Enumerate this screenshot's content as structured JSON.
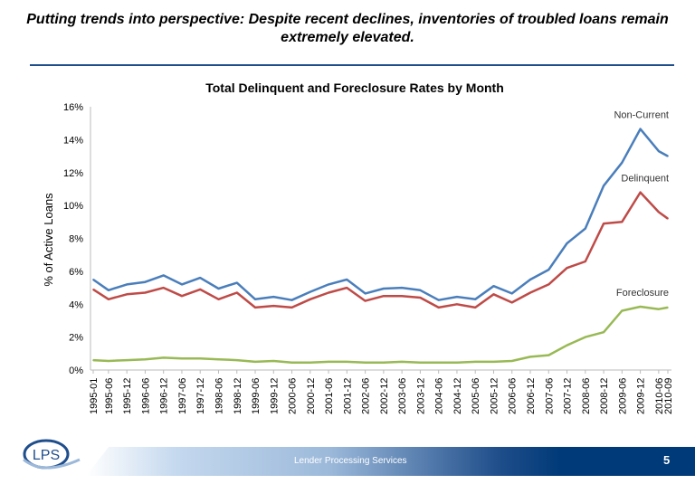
{
  "slide": {
    "headline": "Putting trends into perspective: Despite recent declines, inventories of troubled loans remain extremely elevated.",
    "footer_text": "Lender Processing Services",
    "page_number": "5",
    "logo_text": "LPS",
    "accent_color": "#1f4e8c"
  },
  "chart_data": {
    "type": "line",
    "title": "Total Delinquent and Foreclosure Rates by Month",
    "xlabel": "",
    "ylabel": "% of Active Loans",
    "ylim": [
      0,
      16
    ],
    "yticks": [
      "0%",
      "2%",
      "4%",
      "6%",
      "8%",
      "10%",
      "12%",
      "14%",
      "16%"
    ],
    "grid": false,
    "legend": "inline labels at line ends",
    "x": [
      "1995-01",
      "1995-06",
      "1995-12",
      "1996-06",
      "1996-12",
      "1997-06",
      "1997-12",
      "1998-06",
      "1998-12",
      "1999-06",
      "1999-12",
      "2000-06",
      "2000-12",
      "2001-06",
      "2001-12",
      "2002-06",
      "2002-12",
      "2003-06",
      "2003-12",
      "2004-06",
      "2004-12",
      "2005-06",
      "2005-12",
      "2006-06",
      "2006-12",
      "2007-06",
      "2007-12",
      "2008-06",
      "2008-12",
      "2009-06",
      "2009-12",
      "2010-06",
      "2010-09"
    ],
    "series": [
      {
        "name": "Non-Current",
        "color": "#4a7ebb",
        "values": [
          5.5,
          4.85,
          5.2,
          5.35,
          5.75,
          5.2,
          5.6,
          4.95,
          5.3,
          4.3,
          4.45,
          4.25,
          4.75,
          5.2,
          5.5,
          4.65,
          4.95,
          5.0,
          4.85,
          4.25,
          4.45,
          4.3,
          5.1,
          4.65,
          5.5,
          6.1,
          7.7,
          8.6,
          11.2,
          12.6,
          14.65,
          13.3,
          13.0
        ]
      },
      {
        "name": "Delinquent",
        "color": "#be4b48",
        "values": [
          4.9,
          4.3,
          4.6,
          4.7,
          5.0,
          4.5,
          4.9,
          4.3,
          4.7,
          3.8,
          3.9,
          3.8,
          4.3,
          4.7,
          5.0,
          4.2,
          4.5,
          4.5,
          4.4,
          3.8,
          4.0,
          3.8,
          4.6,
          4.1,
          4.7,
          5.2,
          6.2,
          6.6,
          8.9,
          9.0,
          10.8,
          9.6,
          9.2
        ]
      },
      {
        "name": "Foreclosure",
        "color": "#98b954",
        "values": [
          0.6,
          0.55,
          0.6,
          0.65,
          0.75,
          0.7,
          0.7,
          0.65,
          0.6,
          0.5,
          0.55,
          0.45,
          0.45,
          0.5,
          0.5,
          0.45,
          0.45,
          0.5,
          0.45,
          0.45,
          0.45,
          0.5,
          0.5,
          0.55,
          0.8,
          0.9,
          1.5,
          2.0,
          2.3,
          3.6,
          3.85,
          3.7,
          3.8
        ]
      }
    ]
  }
}
